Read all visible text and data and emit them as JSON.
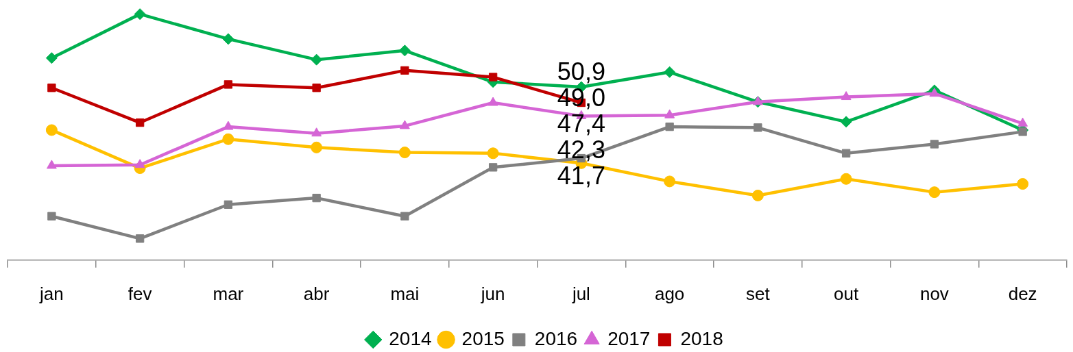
{
  "chart_data": {
    "type": "line",
    "categories": [
      "jan",
      "fev",
      "mar",
      "abr",
      "mai",
      "jun",
      "jul",
      "ago",
      "set",
      "out",
      "nov",
      "dez"
    ],
    "series": [
      {
        "name": "2014",
        "color": "#00b050",
        "marker": "diamond",
        "values": [
          54.4,
          59.7,
          56.7,
          54.2,
          55.3,
          51.5,
          50.9,
          52.7,
          49.1,
          46.7,
          50.5,
          45.7
        ],
        "value_labels": [
          null,
          null,
          null,
          null,
          null,
          null,
          "50,9",
          null,
          null,
          null,
          null,
          null
        ]
      },
      {
        "name": "2015",
        "color": "#ffc000",
        "marker": "circle",
        "values": [
          45.7,
          41.1,
          44.6,
          43.6,
          43.0,
          42.9,
          41.7,
          39.5,
          37.8,
          39.8,
          38.2,
          39.2
        ],
        "value_labels": [
          null,
          null,
          null,
          null,
          null,
          null,
          "41,7",
          null,
          null,
          null,
          null,
          null
        ]
      },
      {
        "name": "2016",
        "color": "#808080",
        "marker": "square",
        "values": [
          35.3,
          32.6,
          36.7,
          37.5,
          35.3,
          41.2,
          42.3,
          46.1,
          46.0,
          42.9,
          44.0,
          45.5
        ],
        "value_labels": [
          null,
          null,
          null,
          null,
          null,
          null,
          "42,3",
          null,
          null,
          null,
          null,
          null
        ]
      },
      {
        "name": "2017",
        "color": "#d565d5",
        "marker": "triangle",
        "values": [
          41.4,
          41.5,
          46.1,
          45.3,
          46.2,
          49.0,
          47.4,
          47.5,
          49.1,
          49.7,
          50.1,
          46.5
        ],
        "value_labels": [
          null,
          null,
          null,
          null,
          null,
          null,
          "47,4",
          null,
          null,
          null,
          null,
          null
        ]
      },
      {
        "name": "2018",
        "color": "#c00000",
        "marker": "square",
        "values": [
          50.8,
          46.6,
          51.2,
          50.8,
          52.9,
          52.1,
          49.0,
          null,
          null,
          null,
          null,
          null
        ],
        "value_labels": [
          null,
          null,
          null,
          null,
          null,
          null,
          "49,0",
          null,
          null,
          null,
          null,
          null
        ]
      }
    ],
    "tick_labels": "x",
    "legend": "bottom"
  }
}
